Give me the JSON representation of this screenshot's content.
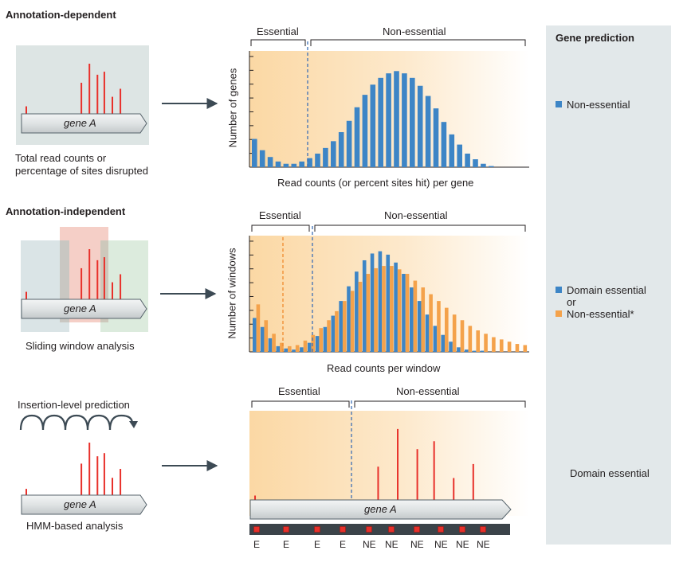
{
  "colors": {
    "blue": "#3d85c6",
    "orange": "#f4a24b",
    "red": "#e8302a",
    "panel": "#e2e8ea",
    "arrow": "#3c4a54"
  },
  "section1": {
    "title": "Annotation-dependent",
    "caption_line1": "Total read counts or",
    "caption_line2": "percentage of sites disrupted",
    "gene_label": "gene A",
    "bracket_essential": "Essential",
    "bracket_nonessential": "Non-essential",
    "ylabel": "Number of genes",
    "xlabel": "Read counts (or percent sites hit) per gene"
  },
  "section2": {
    "title": "Annotation-independent",
    "caption": "Sliding window analysis",
    "gene_label": "gene A",
    "bracket_essential": "Essential",
    "bracket_nonessential": "Non-essential",
    "ylabel": "Number of windows",
    "xlabel": "Read counts per window"
  },
  "section3": {
    "top_caption": "Insertion-level prediction",
    "bottom_caption": "HMM-based analysis",
    "gene_label": "gene A",
    "big_gene_label": "gene A",
    "bracket_essential": "Essential",
    "bracket_nonessential": "Non-essential",
    "state_labels": [
      "E",
      "E",
      "E",
      "E",
      "NE",
      "NE",
      "NE",
      "NE",
      "NE",
      "NE"
    ]
  },
  "gene_prediction": {
    "title": "Gene prediction",
    "row1": "Non-essential",
    "row2_line1": "Domain essential",
    "row2_line2": "or",
    "row2_line3": "Non-essential*",
    "row3": "Domain essential"
  },
  "chart_data": [
    {
      "type": "bar",
      "title": "",
      "xlabel": "Read counts (or percent sites hit) per gene",
      "ylabel": "Number of genes",
      "threshold_index": 7,
      "series": [
        {
          "name": "Non-essential",
          "color": "#3d85c6",
          "values": [
            25,
            15,
            9,
            5,
            3,
            3,
            5,
            8,
            12,
            17,
            23,
            31,
            41,
            53,
            64,
            73,
            79,
            83,
            85,
            83,
            79,
            72,
            63,
            52,
            40,
            29,
            20,
            12,
            7,
            3,
            1
          ]
        }
      ],
      "ylim": [
        0,
        100
      ]
    },
    {
      "type": "bar",
      "title": "",
      "xlabel": "Read counts per window",
      "ylabel": "Number of windows",
      "threshold_blue_index": 7,
      "threshold_orange_index": 2.6,
      "series": [
        {
          "name": "Blue windows",
          "color": "#3d85c6",
          "values": [
            30,
            22,
            12,
            5,
            3,
            2,
            4,
            8,
            14,
            22,
            32,
            45,
            58,
            71,
            81,
            87,
            89,
            86,
            79,
            69,
            57,
            45,
            33,
            23,
            15,
            9,
            4,
            2,
            1,
            1,
            0,
            0,
            0,
            0,
            0
          ]
        },
        {
          "name": "Orange windows",
          "color": "#f4a24b",
          "values": [
            42,
            28,
            16,
            8,
            5,
            6,
            10,
            15,
            21,
            28,
            36,
            45,
            54,
            62,
            69,
            74,
            76,
            76,
            73,
            69,
            63,
            57,
            51,
            45,
            39,
            33,
            28,
            23,
            19,
            16,
            13,
            11,
            9,
            7,
            6
          ]
        }
      ],
      "ylim": [
        0,
        100
      ]
    }
  ],
  "hmm": {
    "insertion_heights": [
      0.05,
      0.38,
      0.81,
      0.58,
      0.67,
      0.25,
      0.41
    ],
    "insertion_positions": [
      0.02,
      0.46,
      0.53,
      0.6,
      0.66,
      0.73,
      0.8
    ]
  },
  "diagram_inserts": {
    "set1_heights": [
      0.15,
      0.62,
      1.0,
      0.78,
      0.84,
      0.34,
      0.5
    ],
    "set3_heights": [
      0.12,
      0.6,
      1.0,
      0.74,
      0.8,
      0.33,
      0.5
    ]
  }
}
